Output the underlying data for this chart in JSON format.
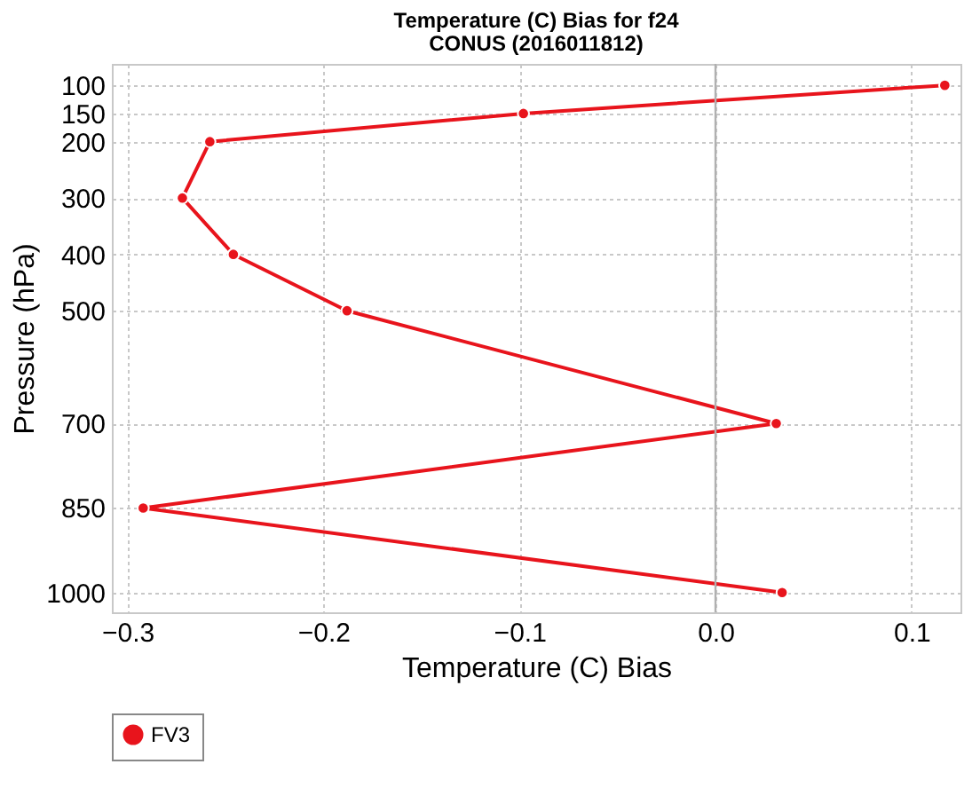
{
  "chart_data": {
    "type": "line",
    "orientation": "horizontal",
    "title": "Temperature (C) Bias for f24",
    "subtitle": "CONUS (2016011812)",
    "xlabel": "Temperature (C) Bias",
    "ylabel": "Pressure (hPa)",
    "x": [
      100,
      150,
      200,
      300,
      400,
      500,
      700,
      850,
      1000
    ],
    "series": [
      {
        "name": "FV3",
        "color": "#e8141c",
        "values": [
          0.117,
          -0.098,
          -0.258,
          -0.272,
          -0.246,
          -0.188,
          0.031,
          -0.292,
          0.034
        ]
      }
    ],
    "xlim": [
      -0.308,
      0.125
    ],
    "xticks": [
      {
        "value": -0.3,
        "label": "−0.3"
      },
      {
        "value": -0.2,
        "label": "−0.2"
      },
      {
        "value": -0.1,
        "label": "−0.1"
      },
      {
        "value": 0,
        "label": "0.0"
      },
      {
        "value": 0.1,
        "label": "0.1"
      }
    ],
    "ylim": [
      1035,
      62
    ],
    "yticks": [
      100,
      150,
      200,
      300,
      400,
      500,
      700,
      850,
      1000
    ],
    "ref_lines": [
      {
        "axis": "x",
        "value": 0,
        "color": "#b0b0b0"
      }
    ],
    "grid": true,
    "legend": "bottom",
    "marker": "circle",
    "line_style": "solid"
  }
}
